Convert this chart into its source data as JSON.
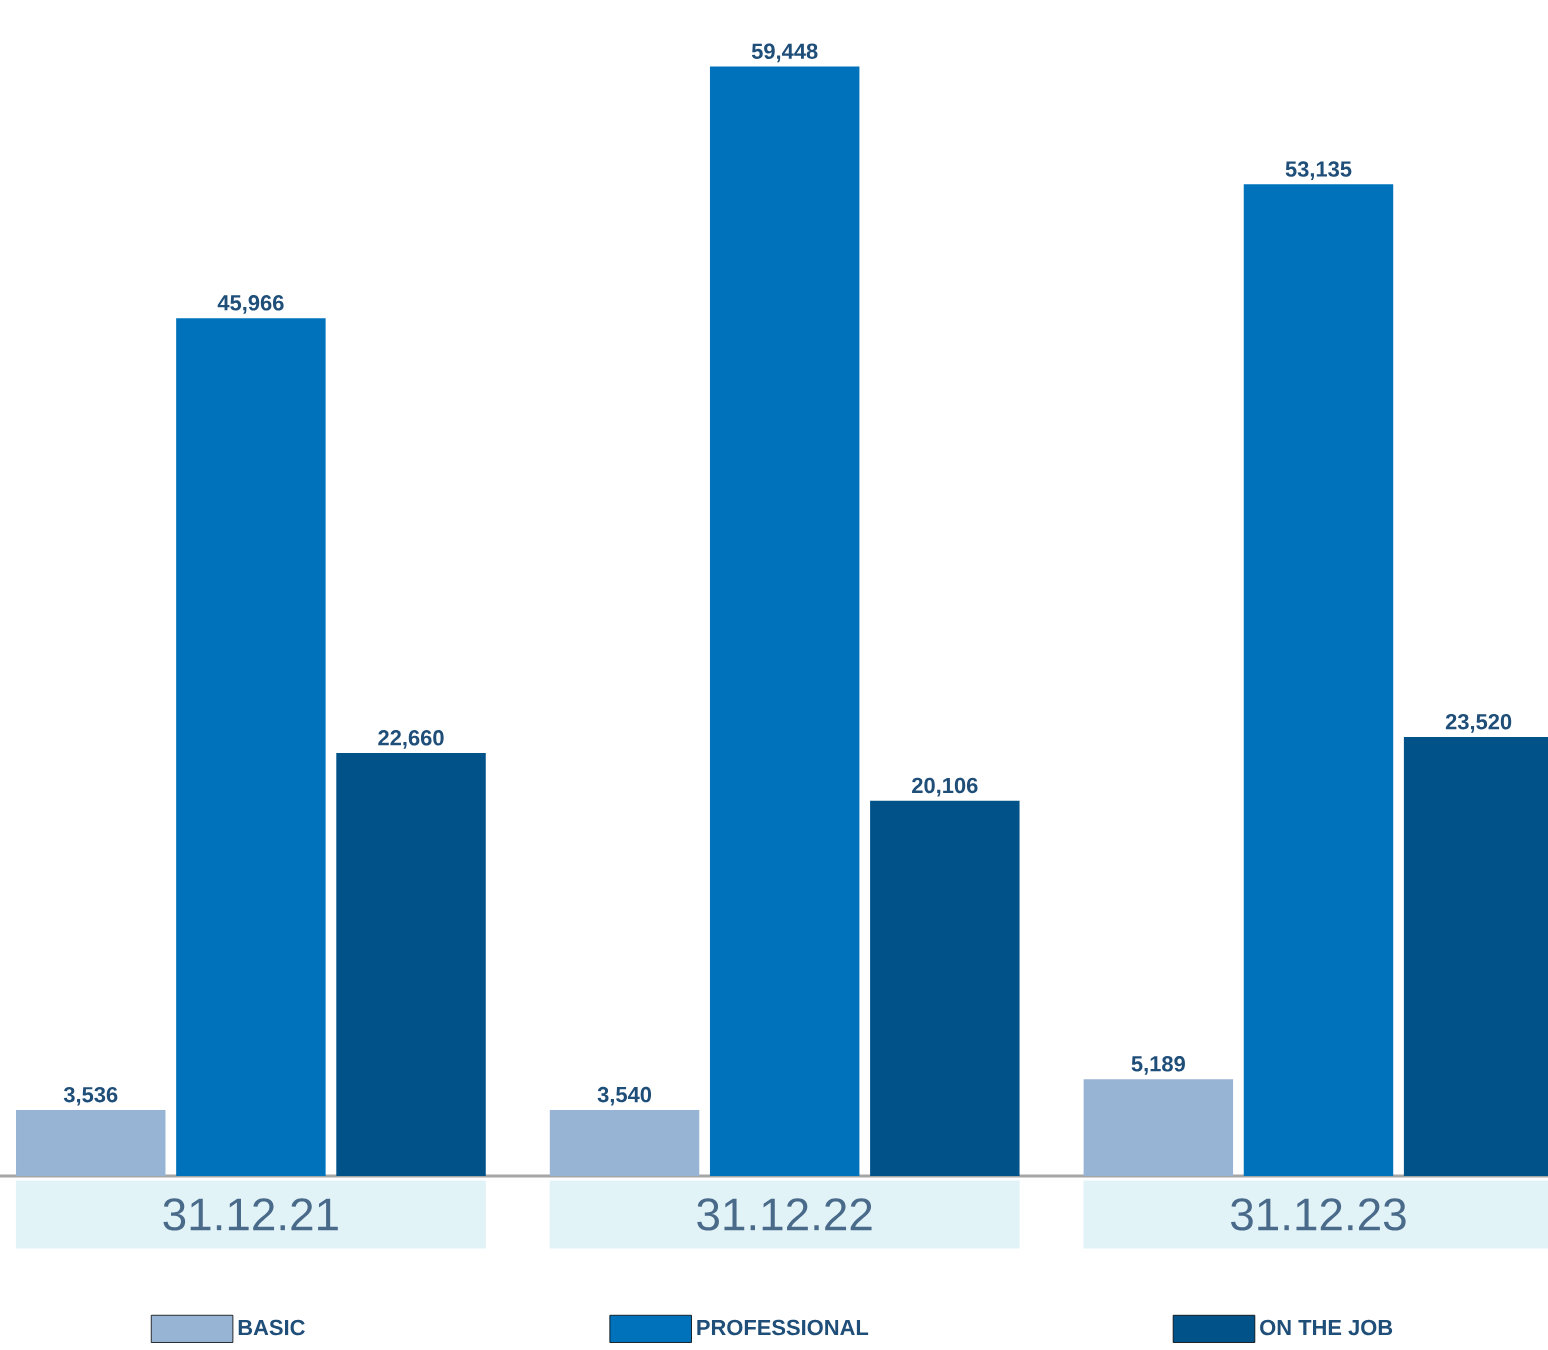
{
  "chart_data": {
    "type": "bar",
    "categories": [
      "31.12.21",
      "31.12.22",
      "31.12.23"
    ],
    "series": [
      {
        "name": "BASIC",
        "color": "#98b4d4",
        "values": [
          3536,
          3540,
          5189
        ],
        "value_labels": [
          "3,536",
          "3,540",
          "5,189"
        ]
      },
      {
        "name": "PROFESSIONAL",
        "color": "#0072bc",
        "values": [
          45966,
          59448,
          53135
        ],
        "value_labels": [
          "45,966",
          "59,448",
          "53,135"
        ]
      },
      {
        "name": "ON THE JOB",
        "color": "#005289",
        "values": [
          22660,
          20106,
          23520
        ],
        "value_labels": [
          "22,660",
          "20,106",
          "23,520"
        ]
      }
    ],
    "legend": "bottom"
  }
}
